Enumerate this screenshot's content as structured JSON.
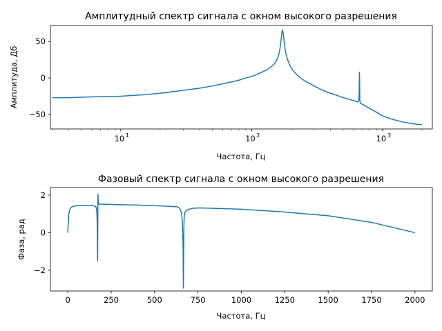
{
  "chart_data": [
    {
      "type": "line",
      "title": "Амплитудный спектр сигнала с окном высокого разрешения",
      "xlabel": "Частота, Гц",
      "ylabel": "Амплитуда, Дб",
      "xscale": "log",
      "xlim": [
        2.9,
        2400
      ],
      "ylim": [
        -70,
        72
      ],
      "xticks": [
        10,
        100,
        1000
      ],
      "xtick_labels": [
        {
          "base": "10",
          "exp": "1"
        },
        {
          "base": "10",
          "exp": "2"
        },
        {
          "base": "10",
          "exp": "3"
        }
      ],
      "yticks": [
        50,
        0,
        -50
      ],
      "ytick_labels": [
        "50",
        "0",
        "−50"
      ],
      "color": "#1f77b4",
      "series": [
        {
          "x": [
            3,
            4,
            6,
            8,
            10,
            15,
            20,
            30,
            40,
            50,
            60,
            70,
            80,
            90,
            100,
            110,
            120,
            130,
            140,
            150,
            155,
            160,
            163,
            166,
            168,
            170,
            172,
            174,
            176,
            178,
            180,
            183,
            186,
            190,
            195,
            200,
            210,
            220,
            240,
            260,
            300,
            350,
            400,
            450,
            500,
            550,
            600,
            620,
            640,
            655,
            660,
            663,
            666,
            668,
            670,
            673,
            676,
            680,
            690,
            700,
            750,
            800,
            900,
            1000,
            1200,
            1400,
            1600,
            1800,
            1900,
            2000
          ],
          "y": [
            -27,
            -27,
            -26,
            -25.5,
            -25,
            -23,
            -21,
            -17,
            -14,
            -11,
            -8,
            -5.5,
            -3,
            0,
            2,
            5,
            8,
            11,
            15,
            20,
            24,
            30,
            36,
            45,
            53,
            62,
            66,
            62,
            54,
            46,
            40,
            33,
            28,
            23,
            18,
            14,
            9,
            5,
            -1,
            -5,
            -11,
            -17,
            -21,
            -24,
            -27,
            -29,
            -31,
            -32,
            -33,
            -32,
            -28,
            -15,
            8,
            -5,
            -30,
            -33,
            -34,
            -35,
            -35.5,
            -36,
            -39,
            -42,
            -47,
            -52,
            -57,
            -60,
            -62,
            -63.5,
            -64,
            -64
          ]
        }
      ]
    },
    {
      "type": "line",
      "title": "Фазовый спектр сигнала с окном высокого разрешения",
      "xlabel": "Частота, Гц",
      "ylabel": "Фаза, рад",
      "xlim": [
        -100,
        2100
      ],
      "ylim": [
        -3.1,
        2.4
      ],
      "xticks": [
        0,
        250,
        500,
        750,
        1000,
        1250,
        1500,
        1750,
        2000
      ],
      "xtick_labels": [
        "0",
        "250",
        "500",
        "750",
        "1000",
        "1250",
        "1500",
        "1750",
        "2000"
      ],
      "yticks": [
        2,
        0,
        -2
      ],
      "ytick_labels": [
        "2",
        "0",
        "−2"
      ],
      "color": "#1f77b4",
      "series": [
        {
          "x": [
            0,
            2,
            5,
            10,
            15,
            25,
            40,
            60,
            100,
            140,
            155,
            162,
            166,
            168,
            170,
            171,
            172,
            173,
            174,
            175,
            176,
            178,
            180,
            190,
            250,
            400,
            550,
            630,
            645,
            655,
            660,
            664,
            666,
            667,
            668,
            669,
            670,
            672,
            676,
            690,
            720,
            760,
            1000,
            1250,
            1500,
            1750,
            2000
          ],
          "y": [
            0,
            0.35,
            0.9,
            1.2,
            1.3,
            1.38,
            1.42,
            1.44,
            1.45,
            1.44,
            1.42,
            1.38,
            1.25,
            1.0,
            0.3,
            -1.1,
            -1.5,
            0.5,
            2.05,
            1.8,
            1.65,
            1.55,
            1.52,
            1.52,
            1.5,
            1.47,
            1.42,
            1.38,
            1.3,
            1.05,
            0.6,
            -0.6,
            -2.95,
            -2.0,
            -0.5,
            0.35,
            0.7,
            0.95,
            1.1,
            1.22,
            1.3,
            1.32,
            1.25,
            1.1,
            0.9,
            0.55,
            0.0
          ]
        }
      ]
    }
  ]
}
